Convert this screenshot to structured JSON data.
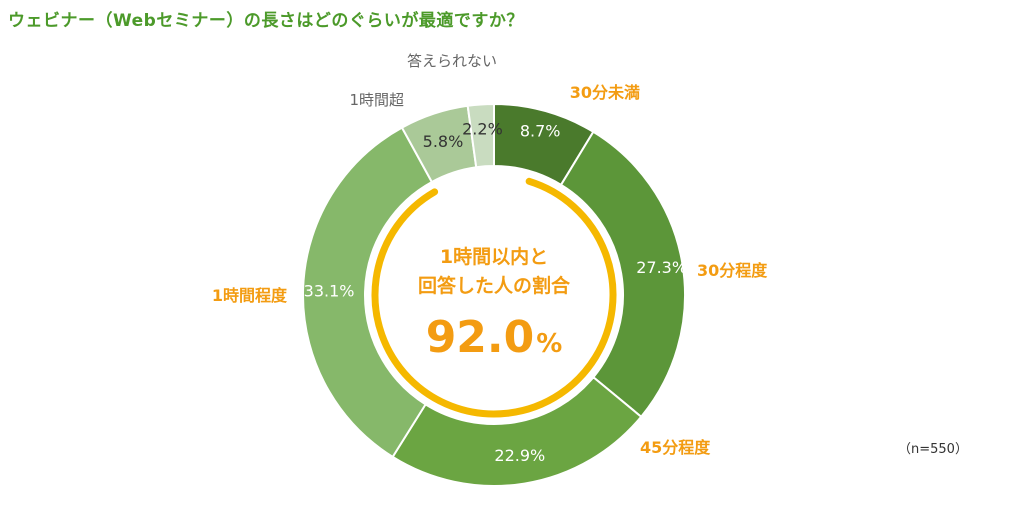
{
  "title": "ウェビナー（Webセミナー）の長さはどのぐらいが最適ですか？",
  "sample_note": "（n=550）",
  "chart_data": {
    "type": "pie",
    "title": "ウェビナー（Webセミナー）の長さはどのぐらいが最適ですか？",
    "categories": [
      "30分未満",
      "30分程度",
      "45分程度",
      "1時間程度",
      "1時間超",
      "答えられない"
    ],
    "values": [
      8.7,
      27.3,
      22.9,
      33.1,
      5.8,
      2.2
    ],
    "value_labels": [
      "8.7%",
      "27.3%",
      "22.9%",
      "33.1%",
      "5.8%",
      "2.2%"
    ],
    "colors": [
      "#4a7a2c",
      "#5c9639",
      "#6ba542",
      "#86b86a",
      "#aac998",
      "#c9dcc0"
    ],
    "value_label_colors": [
      "#ffffff",
      "#ffffff",
      "#ffffff",
      "#ffffff",
      "#333333",
      "#333333"
    ],
    "category_label_colors": [
      "#f39c12",
      "#f39c12",
      "#f39c12",
      "#f39c12",
      "#666666",
      "#666666"
    ],
    "highlight_arc_color": "#f5b800",
    "center": {
      "line1": "1時間以内と",
      "line2": "回答した人の割合",
      "value": "92.0",
      "unit": "%",
      "color": "#f39c12"
    }
  }
}
